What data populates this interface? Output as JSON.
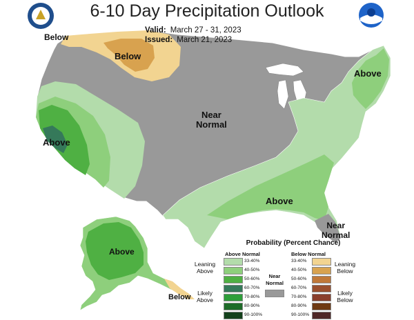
{
  "title": "6-10 Day Precipitation Outlook",
  "valid_label": "Valid:",
  "valid_dates": "March 27 - 31, 2023",
  "issued_label": "Issued:",
  "issued_date": "March 21, 2023",
  "map_labels": {
    "below_nw": "Below",
    "below_north": "Below",
    "near_center_1": "Near",
    "near_center_2": "Normal",
    "above_ca": "Above",
    "above_ne": "Above",
    "above_se": "Above",
    "near_fl_1": "Near",
    "near_fl_2": "Normal",
    "above_ak": "Above",
    "below_ak": "Below"
  },
  "legend": {
    "title": "Probability (Percent Chance)",
    "above_header": "Above Normal",
    "below_header": "Below Normal",
    "near_normal_1": "Near",
    "near_normal_2": "Normal",
    "leaning_above_1": "Leaning",
    "leaning_above_2": "Above",
    "likely_above_1": "Likely",
    "likely_above_2": "Above",
    "leaning_below_1": "Leaning",
    "leaning_below_2": "Below",
    "likely_below_1": "Likely",
    "likely_below_2": "Below",
    "above_bins": [
      "33-40%",
      "40-50%",
      "50-60%",
      "60-70%",
      "70-80%",
      "80-90%",
      "90-100%"
    ],
    "below_bins": [
      "33-40%",
      "40-50%",
      "50-60%",
      "60-70%",
      "70-80%",
      "80-90%",
      "90-100%"
    ],
    "above_colors": [
      "#b3dcab",
      "#8ecf7c",
      "#4fb043",
      "#35795a",
      "#2e9e3a",
      "#1e6b29",
      "#13401b"
    ],
    "below_colors": [
      "#f2d491",
      "#d8a24f",
      "#c07838",
      "#9a4f2d",
      "#8a3f2c",
      "#6e3a13",
      "#4f2727"
    ],
    "near_color": "#999999"
  }
}
